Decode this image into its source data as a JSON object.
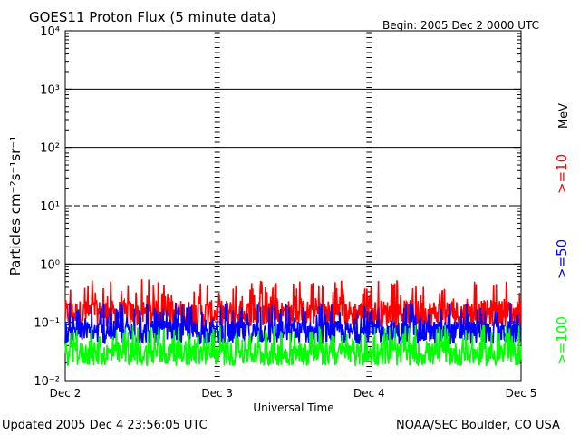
{
  "title": "GOES11 Proton Flux (5 minute data)",
  "begin_label": "Begin: 2005 Dec 2 0000 UTC",
  "updated_label": "Updated 2005 Dec  4 23:56:05 UTC",
  "credit_label": "NOAA/SEC Boulder, CO USA",
  "chart_data": {
    "type": "line",
    "title": "GOES11 Proton Flux (5 minute data)",
    "xlabel": "Universal Time",
    "ylabel": "Particles cm⁻²s⁻¹sr⁻¹",
    "y_scale": "log",
    "ylim": [
      0.01,
      10000
    ],
    "y_ticks": [
      {
        "value": 0.01,
        "label": "10⁻²"
      },
      {
        "value": 0.1,
        "label": "10⁻¹"
      },
      {
        "value": 1,
        "label": "10⁰"
      },
      {
        "value": 10,
        "label": "10¹"
      },
      {
        "value": 100,
        "label": "10²"
      },
      {
        "value": 1000,
        "label": "10³"
      },
      {
        "value": 10000,
        "label": "10⁴"
      }
    ],
    "x_ticks": [
      "Dec 2",
      "Dec 3",
      "Dec 4",
      "Dec 5"
    ],
    "xlim_days": [
      0,
      3
    ],
    "legend_unit": "MeV",
    "threshold_lines": [
      {
        "value": 1,
        "style": "solid"
      },
      {
        "value": 10,
        "style": "dashed"
      },
      {
        "value": 100,
        "style": "solid"
      },
      {
        "value": 1000,
        "style": "solid"
      }
    ],
    "series": [
      {
        "name": ">=10",
        "color": "#ff0000",
        "typical": 0.15,
        "min": 0.08,
        "max": 0.55
      },
      {
        "name": ">=50",
        "color": "#0000ff",
        "typical": 0.07,
        "min": 0.04,
        "max": 0.22
      },
      {
        "name": ">=100",
        "color": "#00ff00",
        "typical": 0.03,
        "min": 0.016,
        "max": 0.09
      }
    ]
  }
}
